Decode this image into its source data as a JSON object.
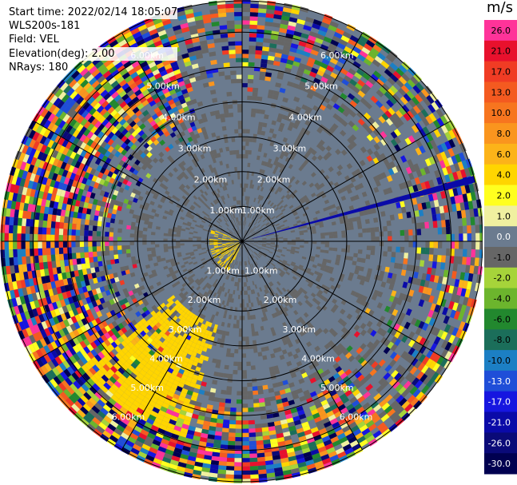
{
  "meta": {
    "start_time": "Start time: 2022/02/14 18:05:07",
    "instrument": "WLS200s-181",
    "field": "Field: VEL",
    "elevation": "Elevation(deg): 2.00",
    "nrays": "NRays: 180"
  },
  "colorbar": {
    "unit": "m/s",
    "min": -30.0,
    "max": 30.0,
    "bins": [
      {
        "label": "26.0",
        "color": "#ff3399"
      },
      {
        "label": "21.0",
        "color": "#e8112d"
      },
      {
        "label": "17.0",
        "color": "#f03c24"
      },
      {
        "label": "13.0",
        "color": "#f45a20"
      },
      {
        "label": "10.0",
        "color": "#f7751f"
      },
      {
        "label": "8.0",
        "color": "#fa951e"
      },
      {
        "label": "6.0",
        "color": "#fcb319"
      },
      {
        "label": "4.0",
        "color": "#ffd500"
      },
      {
        "label": "2.0",
        "color": "#ffff1f"
      },
      {
        "label": "1.0",
        "color": "#f0f0a0"
      },
      {
        "label": "0.0",
        "color": "#6b7b8f"
      },
      {
        "label": "-1.0",
        "color": "#666666"
      },
      {
        "label": "-2.0",
        "color": "#a6d43a"
      },
      {
        "label": "-4.0",
        "color": "#6cb52d"
      },
      {
        "label": "-6.0",
        "color": "#22882e"
      },
      {
        "label": "-8.0",
        "color": "#1b6e5a"
      },
      {
        "label": "-10.0",
        "color": "#1c7fc4"
      },
      {
        "label": "-13.0",
        "color": "#1f4ed8"
      },
      {
        "label": "-17.0",
        "color": "#1616e0"
      },
      {
        "label": "-21.0",
        "color": "#0a0aa8"
      },
      {
        "label": "-26.0",
        "color": "#0a0a78"
      },
      {
        "label": "-30.0",
        "color": "#000050"
      }
    ]
  },
  "chart_data": {
    "type": "heatmap",
    "plot": "PPI (plan position indicator), polar",
    "field": "VEL",
    "units": "m/s",
    "elevation_deg": 2.0,
    "nrays": 180,
    "max_range_km": 6.9,
    "range_rings_km": [
      1,
      2,
      3,
      4,
      5,
      6
    ],
    "range_labels": [
      "1.00km",
      "2.00km",
      "3.00km",
      "4.00km",
      "5.00km",
      "6.00km"
    ],
    "spokes_deg": [
      0,
      30,
      60,
      90,
      120,
      150,
      180,
      210,
      240,
      270,
      300,
      330
    ],
    "color_scale": [
      -30,
      30
    ],
    "features": [
      {
        "description": "background near-zero velocity (slate gray) inside ~4 km",
        "value_ms": 0.0
      },
      {
        "description": "cluster of +4 m/s (yellow) returns",
        "azimuth_deg": [
          195,
          230
        ],
        "range_km": [
          2.5,
          5.8
        ],
        "value_ms": 4.0
      },
      {
        "description": "small yellow/gold returns near radar",
        "azimuth_deg": [
          200,
          290
        ],
        "range_km": [
          0.0,
          0.9
        ],
        "value_ms": 4.0
      },
      {
        "description": "narrow -21 m/s beam",
        "azimuth_deg": 75,
        "range_km": [
          0.3,
          6.9
        ],
        "value_ms": -21.0
      },
      {
        "description": "noisy mixed-velocity clutter beyond ~4 km",
        "range_km": [
          4.0,
          6.9
        ]
      }
    ]
  }
}
